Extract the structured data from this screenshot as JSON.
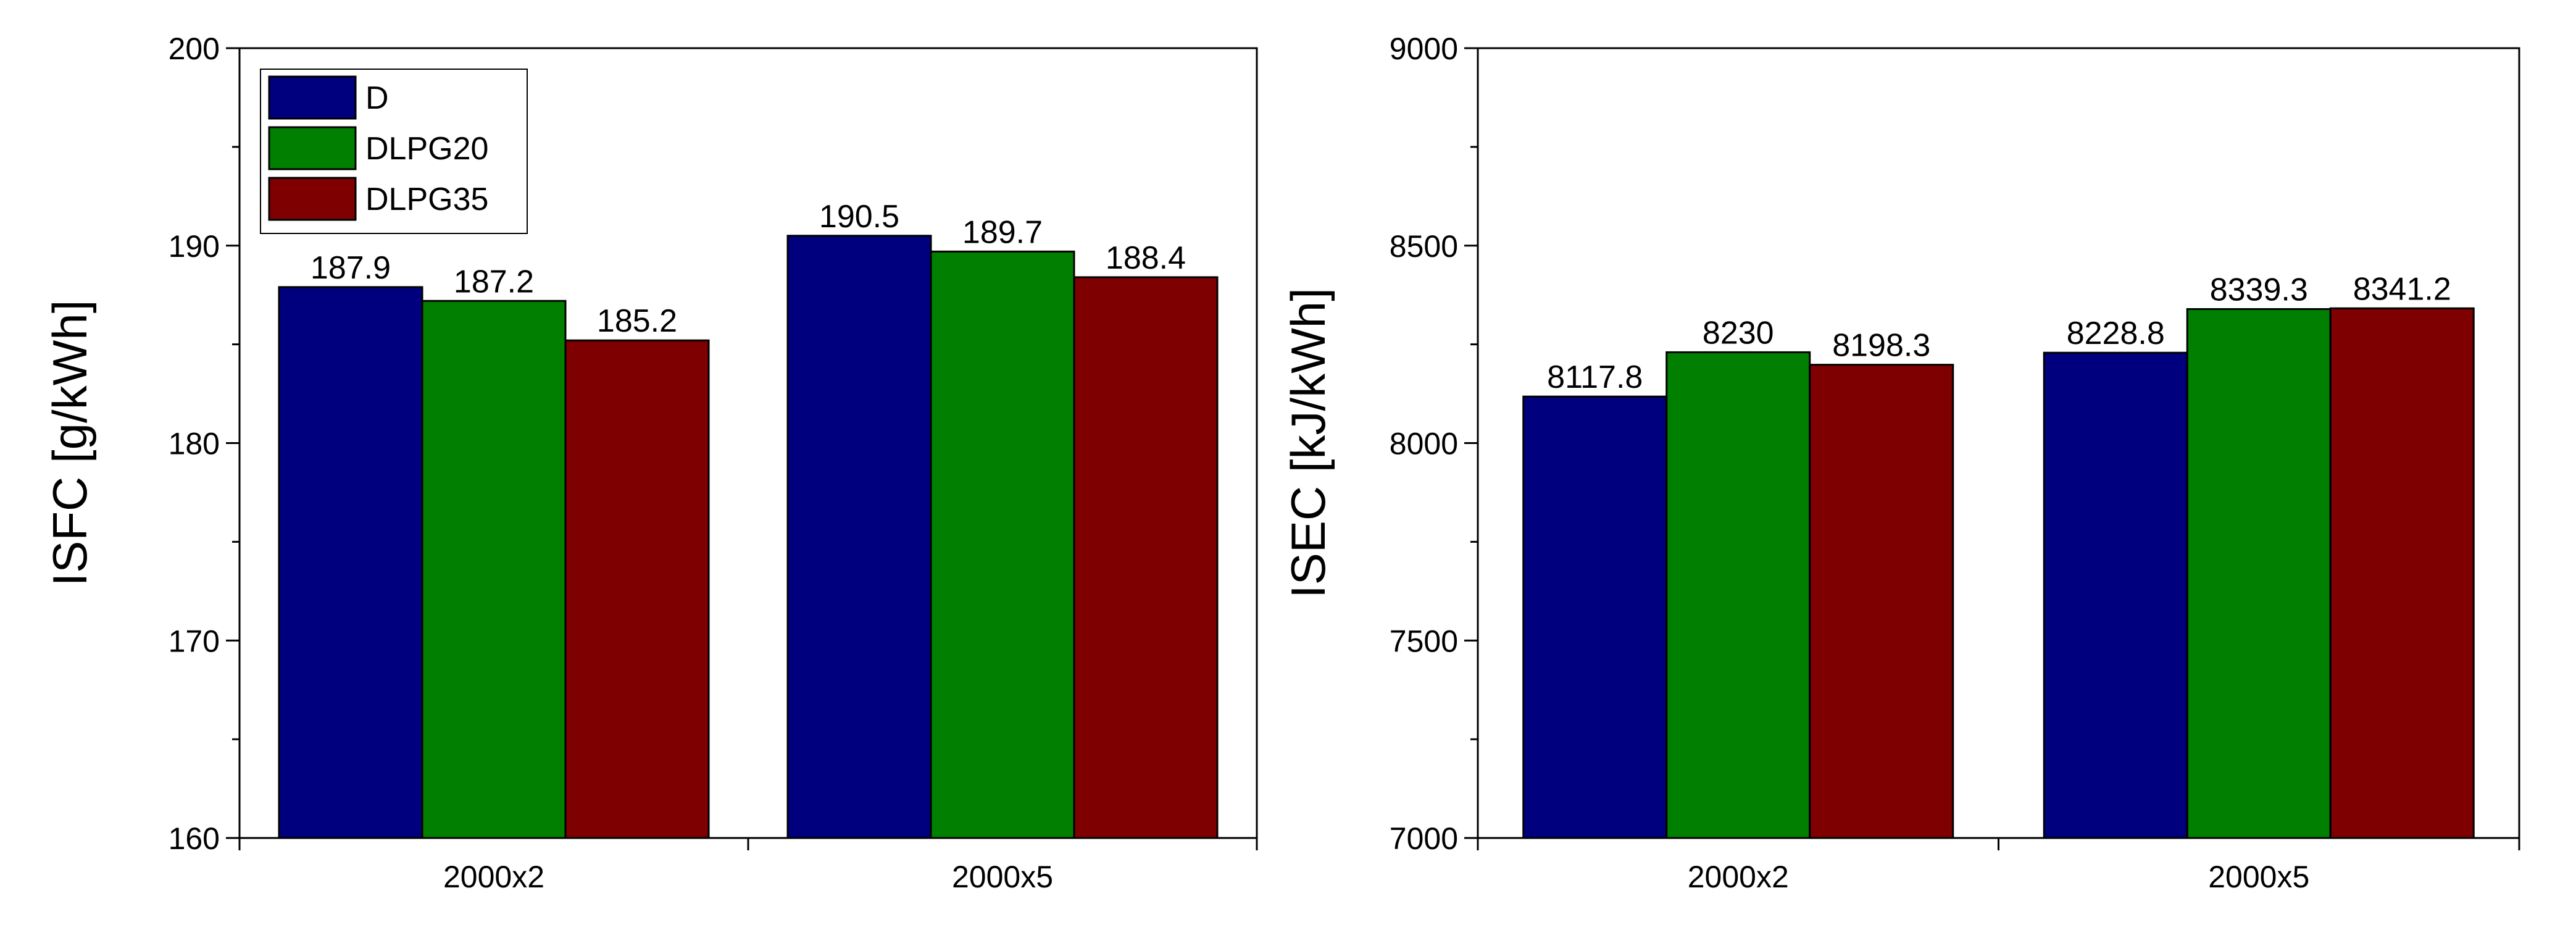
{
  "chart_data": [
    {
      "type": "bar",
      "title": "",
      "xlabel": "",
      "ylabel": "ISFC  [g/kWh]",
      "ylim": [
        160,
        200
      ],
      "yticks": [
        160,
        170,
        180,
        190,
        200
      ],
      "categories": [
        "2000x2",
        "2000x5"
      ],
      "series": [
        {
          "name": "D",
          "values": [
            187.9,
            190.5
          ],
          "labels": [
            "187.9",
            "190.5"
          ]
        },
        {
          "name": "DLPG20",
          "values": [
            187.2,
            189.7
          ],
          "labels": [
            "187.2",
            "189.7"
          ]
        },
        {
          "name": "DLPG35",
          "values": [
            185.2,
            188.4
          ],
          "labels": [
            "185.2",
            "188.4"
          ]
        }
      ],
      "legend": "top-left",
      "grid": false
    },
    {
      "type": "bar",
      "title": "",
      "xlabel": "",
      "ylabel": "ISEC [kJ/kWh]",
      "ylim": [
        7000,
        9000
      ],
      "yticks": [
        7000,
        7500,
        8000,
        8500,
        9000
      ],
      "categories": [
        "2000x2",
        "2000x5"
      ],
      "series": [
        {
          "name": "D",
          "values": [
            8117.8,
            8228.8
          ],
          "labels": [
            "8117.8",
            "8228.8"
          ]
        },
        {
          "name": "DLPG20",
          "values": [
            8230,
            8339.3
          ],
          "labels": [
            "8230",
            "8339.3"
          ]
        },
        {
          "name": "DLPG35",
          "values": [
            8198.3,
            8341.2
          ],
          "labels": [
            "8198.3",
            "8341.2"
          ]
        }
      ],
      "legend": "none",
      "grid": false
    }
  ],
  "colors": {
    "D": "#00007f",
    "DLPG20": "#007f00",
    "DLPG35": "#7f0000",
    "axis": "#000000",
    "background": "#ffffff"
  }
}
